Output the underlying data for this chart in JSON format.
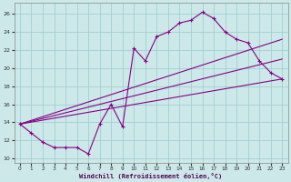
{
  "background_color": "#cce8e8",
  "line_color": "#880088",
  "grid_color": "#99cccc",
  "xlabel": "Windchill (Refroidissement éolien,°C)",
  "x_ticks": [
    0,
    1,
    2,
    3,
    4,
    5,
    6,
    7,
    8,
    9,
    10,
    11,
    12,
    13,
    14,
    15,
    16,
    17,
    18,
    19,
    20,
    21,
    22,
    23
  ],
  "y_ticks": [
    10,
    12,
    14,
    16,
    18,
    20,
    22,
    24,
    26
  ],
  "ylim": [
    9.5,
    27.2
  ],
  "xlim": [
    -0.5,
    23.5
  ],
  "curve_x": [
    0,
    1,
    2,
    3,
    4,
    5,
    6,
    7,
    8,
    9,
    10,
    11,
    12,
    13,
    14,
    15,
    16,
    17,
    18,
    19,
    20,
    21,
    22,
    23
  ],
  "curve_y": [
    13.8,
    12.8,
    11.8,
    11.2,
    11.2,
    11.2,
    10.5,
    13.8,
    16.0,
    13.5,
    22.2,
    20.8,
    23.5,
    24.0,
    25.0,
    25.3,
    26.2,
    25.5,
    24.0,
    23.2,
    22.8,
    20.8,
    19.5,
    18.8
  ],
  "ref_lines": [
    {
      "x0": 0,
      "y0": 13.8,
      "x1": 23,
      "y1": 18.8
    },
    {
      "x0": 0,
      "y0": 13.8,
      "x1": 23,
      "y1": 21.0
    },
    {
      "x0": 0,
      "y0": 13.8,
      "x1": 23,
      "y1": 23.2
    }
  ]
}
